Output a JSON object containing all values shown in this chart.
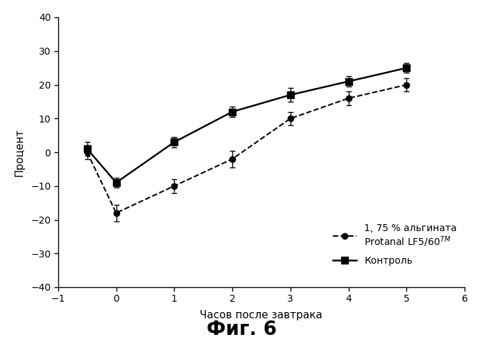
{
  "alginate_x": [
    -0.5,
    0,
    1,
    2,
    3,
    4,
    5
  ],
  "alginate_y": [
    0,
    -18,
    -10,
    -2,
    10,
    16,
    20
  ],
  "alginate_yerr": [
    2,
    2.5,
    2,
    2.5,
    2,
    2,
    2
  ],
  "control_x": [
    -0.5,
    0,
    1,
    2,
    3,
    4,
    5
  ],
  "control_y": [
    1,
    -9,
    3,
    12,
    17,
    21,
    25
  ],
  "control_yerr": [
    2,
    1.5,
    1.5,
    1.5,
    2,
    1.5,
    1.5
  ],
  "alginate_label_line1": "1, 75 % альгината",
  "alginate_label_line2": "Protanal LF5/60",
  "control_label": "Контроль",
  "xlabel": "Часов после завтрака",
  "ylabel": "Процент",
  "caption": "Фиг. 6",
  "xlim": [
    -1,
    6
  ],
  "ylim": [
    -40,
    40
  ],
  "xticks": [
    -1,
    0,
    1,
    2,
    3,
    4,
    5,
    6
  ],
  "yticks": [
    -40,
    -30,
    -20,
    -10,
    0,
    10,
    20,
    30,
    40
  ],
  "bg_color": "#ffffff",
  "line_color": "#000000",
  "font_size_ticks": 10,
  "font_size_labels": 11,
  "font_size_legend": 10,
  "font_size_caption": 20
}
